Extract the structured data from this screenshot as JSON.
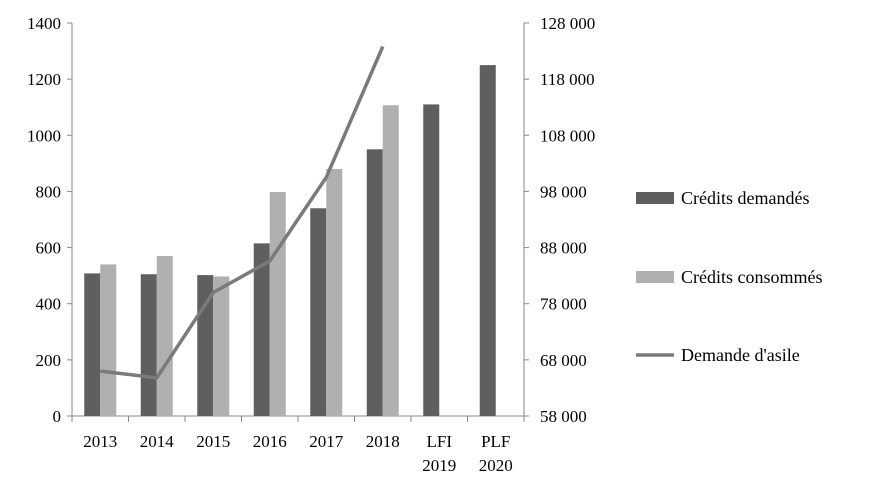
{
  "chart_data": {
    "type": "bar",
    "categories": [
      "2013",
      "2014",
      "2015",
      "2016",
      "2017",
      "2018",
      "LFI 2019",
      "PLF 2020"
    ],
    "category_lines": [
      [
        "2013"
      ],
      [
        "2014"
      ],
      [
        "2015"
      ],
      [
        "2016"
      ],
      [
        "2017"
      ],
      [
        "2018"
      ],
      [
        "LFI",
        "2019"
      ],
      [
        "PLF",
        "2020"
      ]
    ],
    "series": [
      {
        "name": "Crédits demandés",
        "kind": "bar",
        "axis": "left",
        "color": "#5f5f5f",
        "values": [
          508,
          505,
          502,
          615,
          740,
          950,
          1110,
          1250
        ]
      },
      {
        "name": "Crédits consommés",
        "kind": "bar",
        "axis": "left",
        "color": "#b0b0b0",
        "values": [
          540,
          570,
          497,
          798,
          880,
          1107,
          null,
          null
        ]
      },
      {
        "name": "Demande d'asile",
        "kind": "line",
        "axis": "right",
        "color": "#7a7a7a",
        "values": [
          66000,
          64800,
          80000,
          85600,
          100500,
          123800,
          null,
          null
        ]
      }
    ],
    "y_left": {
      "min": 0,
      "max": 1400,
      "ticks": [
        0,
        200,
        400,
        600,
        800,
        1000,
        1200,
        1400
      ],
      "tick_labels": [
        "0",
        "200",
        "400",
        "600",
        "800",
        "1000",
        "1200",
        "1400"
      ]
    },
    "y_right": {
      "min": 58000,
      "max": 128000,
      "ticks": [
        58000,
        68000,
        78000,
        88000,
        98000,
        108000,
        118000,
        128000
      ],
      "tick_labels": [
        "58 000",
        "68 000",
        "78 000",
        "88 000",
        "98 000",
        "108 000",
        "118 000",
        "128 000"
      ]
    },
    "grid": false,
    "legend": "right"
  }
}
